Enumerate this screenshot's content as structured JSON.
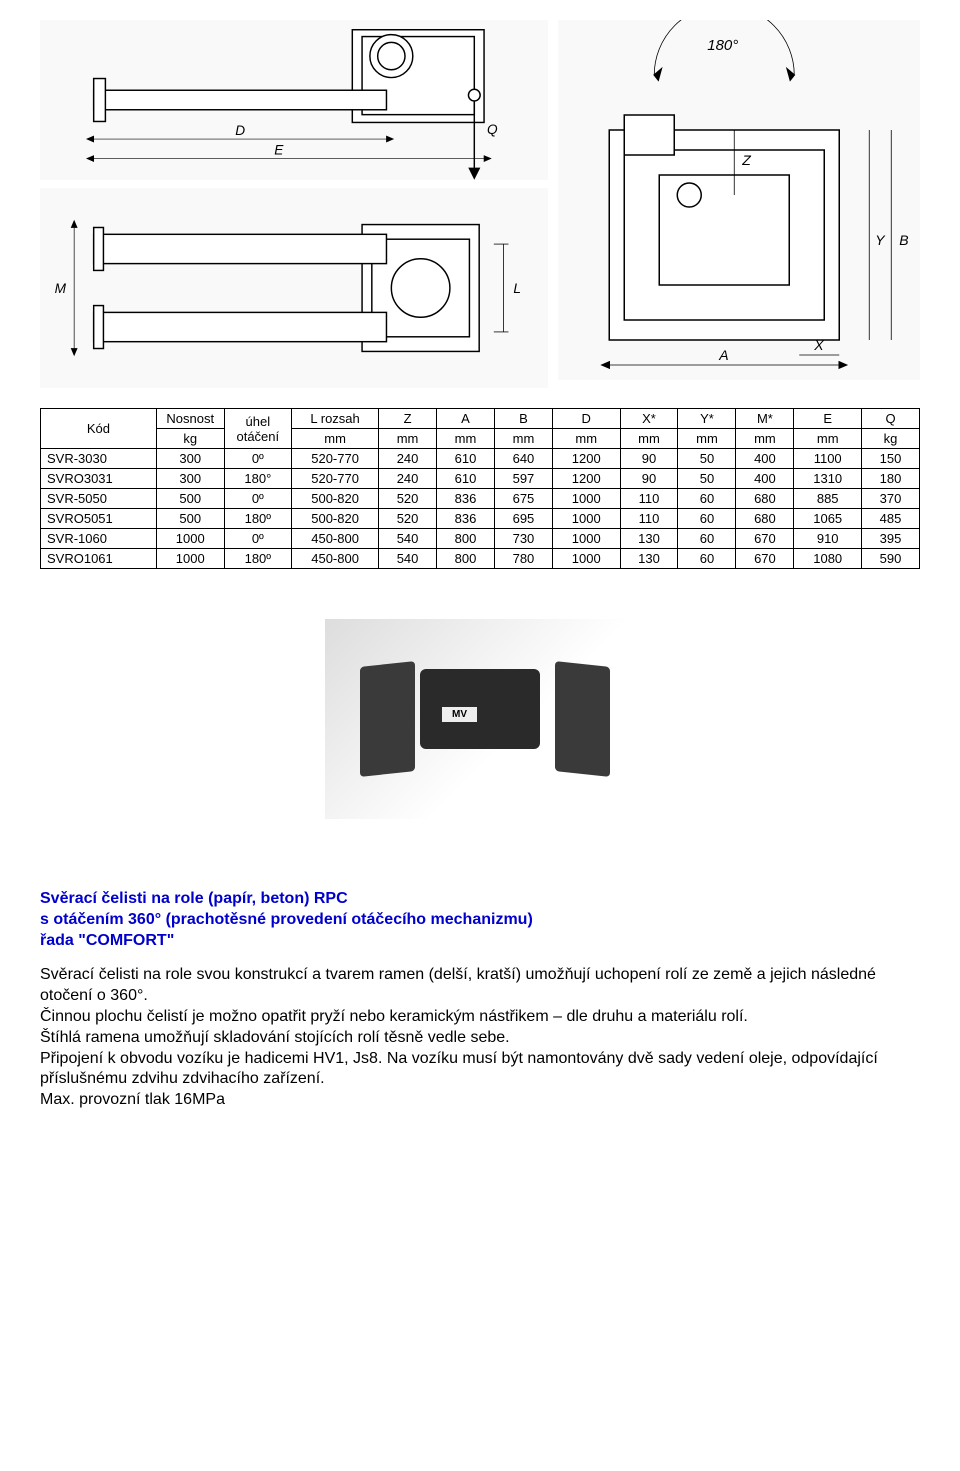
{
  "diagram_labels": {
    "angle": "180°",
    "D": "D",
    "E": "E",
    "Q": "Q",
    "M": "M",
    "L": "L",
    "A": "A",
    "B": "B",
    "X": "X",
    "Y": "Y",
    "Z": "Z"
  },
  "table": {
    "headers_top": [
      "Kód",
      "Nosnost",
      "úhel otáčení",
      "L rozsah",
      "Z",
      "A",
      "B",
      "D",
      "X*",
      "Y*",
      "M*",
      "E",
      "Q"
    ],
    "headers_bot": [
      "",
      "kg",
      "",
      "mm",
      "mm",
      "mm",
      "mm",
      "mm",
      "mm",
      "mm",
      "mm",
      "mm",
      "kg"
    ],
    "rows": [
      [
        "SVR-3030",
        "300",
        "0º",
        "520-770",
        "240",
        "610",
        "640",
        "1200",
        "90",
        "50",
        "400",
        "1100",
        "150"
      ],
      [
        "SVRO3031",
        "300",
        "180°",
        "520-770",
        "240",
        "610",
        "597",
        "1200",
        "90",
        "50",
        "400",
        "1310",
        "180"
      ],
      [
        "SVR-5050",
        "500",
        "0º",
        "500-820",
        "520",
        "836",
        "675",
        "1000",
        "110",
        "60",
        "680",
        "885",
        "370"
      ],
      [
        "SVRO5051",
        "500",
        "180º",
        "500-820",
        "520",
        "836",
        "695",
        "1000",
        "110",
        "60",
        "680",
        "1065",
        "485"
      ],
      [
        "SVR-1060",
        "1000",
        "0º",
        "450-800",
        "540",
        "800",
        "730",
        "1000",
        "130",
        "60",
        "670",
        "910",
        "395"
      ],
      [
        "SVRO1061",
        "1000",
        "180º",
        "450-800",
        "540",
        "800",
        "780",
        "1000",
        "130",
        "60",
        "670",
        "1080",
        "590"
      ]
    ],
    "col_widths_pct": [
      12,
      7,
      7,
      9,
      6,
      6,
      6,
      7,
      6,
      6,
      6,
      7,
      6
    ]
  },
  "photo_label": "MV",
  "title_lines": [
    "Svěrací čelisti na role (papír, beton) RPC",
    "s otáčením 360° (prachotěsné provedení otáčecího mechanizmu)",
    "řada \"COMFORT\""
  ],
  "body_paragraphs": [
    "Svěrací čelisti na role svou konstrukcí a tvarem ramen (delší, kratší) umožňují uchopení rolí ze země a jejich následné otočení o 360°.",
    "Činnou plochu čelistí je možno opatřit pryží nebo keramickým nástřikem – dle druhu a materiálu rolí.",
    "Štíhlá ramena umožňují skladování stojících rolí těsně vedle sebe.",
    "Připojení k obvodu vozíku je hadicemi HV1, Js8. Na vozíku musí být namontovány dvě sady vedení oleje, odpovídající příslušnému zdvihu zdvihacího zařízení.",
    "Max. provozní tlak 16MPa"
  ],
  "colors": {
    "title": "#0000cc",
    "text": "#000000",
    "border": "#000000",
    "bg": "#ffffff"
  }
}
